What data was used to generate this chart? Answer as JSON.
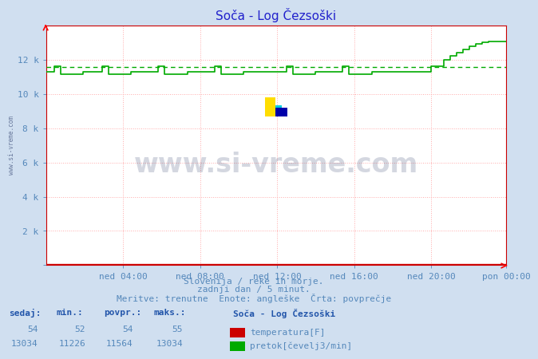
{
  "title": "Soča - Log Čezsoški",
  "title_color": "#2222cc",
  "bg_color": "#d0dff0",
  "plot_bg_color": "#ffffff",
  "grid_color": "#ffaaaa",
  "grid_style": ":",
  "tick_label_color": "#5588bb",
  "border_color": "#cc0000",
  "ylim": [
    0,
    14000
  ],
  "yticks": [
    0,
    2000,
    4000,
    6000,
    8000,
    10000,
    12000
  ],
  "ytick_labels": [
    "",
    "2 k",
    "4 k",
    "6 k",
    "8 k",
    "10 k",
    "12 k"
  ],
  "xtick_labels": [
    "ned 04:00",
    "ned 08:00",
    "ned 12:00",
    "ned 16:00",
    "ned 20:00",
    "pon 00:00"
  ],
  "n_points": 288,
  "temp_value": 54,
  "temp_color": "#cc0000",
  "flow_color": "#00aa00",
  "flow_avg": 11564,
  "flow_avg_color": "#00aa00",
  "watermark_text": "www.si-vreme.com",
  "watermark_color": "#112255",
  "watermark_alpha": 0.18,
  "footer_line1": "Slovenija / reke in morje.",
  "footer_line2": "zadnji dan / 5 minut.",
  "footer_line3": "Meritve: trenutne  Enote: angleške  Črta: povprečje",
  "footer_color": "#5588bb",
  "table_color": "#5588bb",
  "table_bold_color": "#2255aa",
  "table_headers": [
    "sedaj:",
    "min.:",
    "povpr.:",
    "maks.:"
  ],
  "temp_row": [
    "54",
    "52",
    "54",
    "55"
  ],
  "flow_row": [
    "13034",
    "11226",
    "11564",
    "13034"
  ],
  "legend_title": "Soča - Log Čezsoški",
  "legend_temp": "temperatura[F]",
  "legend_flow": "pretok[čevelj3/min]",
  "sivreme_rot_text": "www.si-vreme.com"
}
